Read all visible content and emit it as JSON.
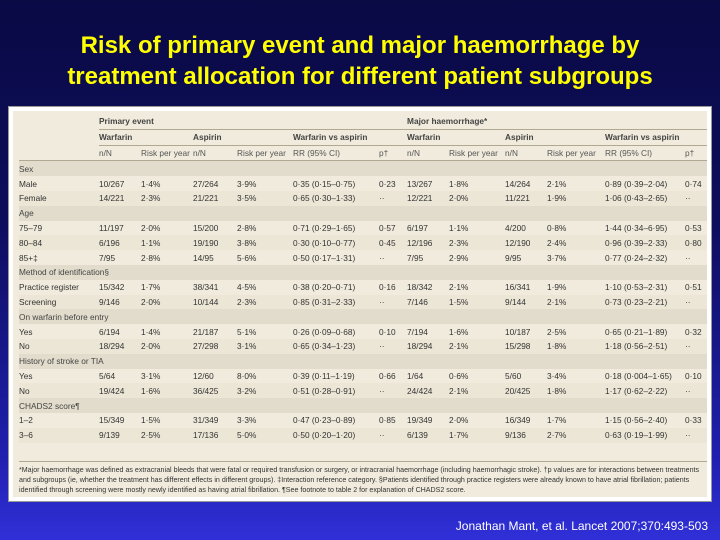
{
  "slide": {
    "title_line1": "Risk of primary event and major haemorrhage by",
    "title_line2": "treatment allocation for different patient subgroups",
    "citation": "Jonathan Mant, et al. Lancet 2007;370:493-503"
  },
  "table": {
    "group_headers": [
      "Primary event",
      "Major haemorrhage*"
    ],
    "sub_headers": [
      "Warfarin",
      "Aspirin",
      "Warfarin vs aspirin",
      "Warfarin",
      "Aspirin",
      "Warfarin vs aspirin"
    ],
    "col_headers": [
      "n/N",
      "Risk per year",
      "n/N",
      "Risk per year",
      "RR (95% CI)",
      "p†",
      "n/N",
      "Risk per year",
      "n/N",
      "Risk per year",
      "RR (95% CI)",
      "p†"
    ],
    "sections": [
      {
        "title": "Sex",
        "rows": [
          [
            "Male",
            "10/267",
            "1·4%",
            "27/264",
            "3·9%",
            "0·35 (0·15–0·75)",
            "0·23",
            "13/267",
            "1·8%",
            "14/264",
            "2·1%",
            "0·89 (0·39–2·04)",
            "0·74"
          ],
          [
            "Female",
            "14/221",
            "2·3%",
            "21/221",
            "3·5%",
            "0·65 (0·30–1·33)",
            "··",
            "12/221",
            "2·0%",
            "11/221",
            "1·9%",
            "1·06 (0·43–2·65)",
            "··"
          ]
        ]
      },
      {
        "title": "Age",
        "rows": [
          [
            "75–79",
            "11/197",
            "2·0%",
            "15/200",
            "2·8%",
            "0·71 (0·29–1·65)",
            "0·57",
            "6/197",
            "1·1%",
            "4/200",
            "0·8%",
            "1·44 (0·34–6·95)",
            "0·53"
          ],
          [
            "80–84",
            "6/196",
            "1·1%",
            "19/190",
            "3·8%",
            "0·30 (0·10–0·77)",
            "0·45",
            "12/196",
            "2·3%",
            "12/190",
            "2·4%",
            "0·96 (0·39–2·33)",
            "0·80"
          ],
          [
            "85+‡",
            "7/95",
            "2·8%",
            "14/95",
            "5·6%",
            "0·50 (0·17–1·31)",
            "··",
            "7/95",
            "2·9%",
            "9/95",
            "3·7%",
            "0·77 (0·24–2·32)",
            "··"
          ]
        ]
      },
      {
        "title": "Method of identification§",
        "rows": [
          [
            "Practice register",
            "15/342",
            "1·7%",
            "38/341",
            "4·5%",
            "0·38 (0·20–0·71)",
            "0·16",
            "18/342",
            "2·1%",
            "16/341",
            "1·9%",
            "1·10 (0·53–2·31)",
            "0·51"
          ],
          [
            "Screening",
            "9/146",
            "2·0%",
            "10/144",
            "2·3%",
            "0·85 (0·31–2·33)",
            "··",
            "7/146",
            "1·5%",
            "9/144",
            "2·1%",
            "0·73 (0·23–2·21)",
            "··"
          ]
        ]
      },
      {
        "title": "On warfarin before entry",
        "rows": [
          [
            "Yes",
            "6/194",
            "1·4%",
            "21/187",
            "5·1%",
            "0·26 (0·09–0·68)",
            "0·10",
            "7/194",
            "1·6%",
            "10/187",
            "2·5%",
            "0·65 (0·21–1·89)",
            "0·32"
          ],
          [
            "No",
            "18/294",
            "2·0%",
            "27/298",
            "3·1%",
            "0·65 (0·34–1·23)",
            "··",
            "18/294",
            "2·1%",
            "15/298",
            "1·8%",
            "1·18 (0·56–2·51)",
            "··"
          ]
        ]
      },
      {
        "title": "History of stroke or TIA",
        "rows": [
          [
            "Yes",
            "5/64",
            "3·1%",
            "12/60",
            "8·0%",
            "0·39 (0·11–1·19)",
            "0·66",
            "1/64",
            "0·6%",
            "5/60",
            "3·4%",
            "0·18 (0·004–1·65)",
            "0·10"
          ],
          [
            "No",
            "19/424",
            "1·6%",
            "36/425",
            "3·2%",
            "0·51 (0·28–0·91)",
            "··",
            "24/424",
            "2·1%",
            "20/425",
            "1·8%",
            "1·17 (0·62–2·22)",
            "··"
          ]
        ]
      },
      {
        "title": "CHADS2 score¶",
        "rows": [
          [
            "1–2",
            "15/349",
            "1·5%",
            "31/349",
            "3·3%",
            "0·47 (0·23–0·89)",
            "0·85",
            "19/349",
            "2·0%",
            "16/349",
            "1·7%",
            "1·15 (0·56–2·40)",
            "0·33"
          ],
          [
            "3–6",
            "9/139",
            "2·5%",
            "17/136",
            "5·0%",
            "0·50 (0·20–1·20)",
            "··",
            "6/139",
            "1·7%",
            "9/136",
            "2·7%",
            "0·63 (0·19–1·99)",
            "··"
          ]
        ]
      }
    ],
    "footnote": "*Major haemorrhage was defined as extracranial bleeds that were fatal or required transfusion or surgery, or intracranial haemorrhage (including haemorrhagic stroke). †p values are for interactions between treatments and subgroups (ie, whether the treatment has different effects in different groups). ‡Interaction reference category. §Patients identified through practice registers were already known to have atrial fibrillation; patients identified through screening were mostly newly identified as having atrial fibrillation. ¶See footnote to table 2 for explanation of CHADS2 score."
  }
}
